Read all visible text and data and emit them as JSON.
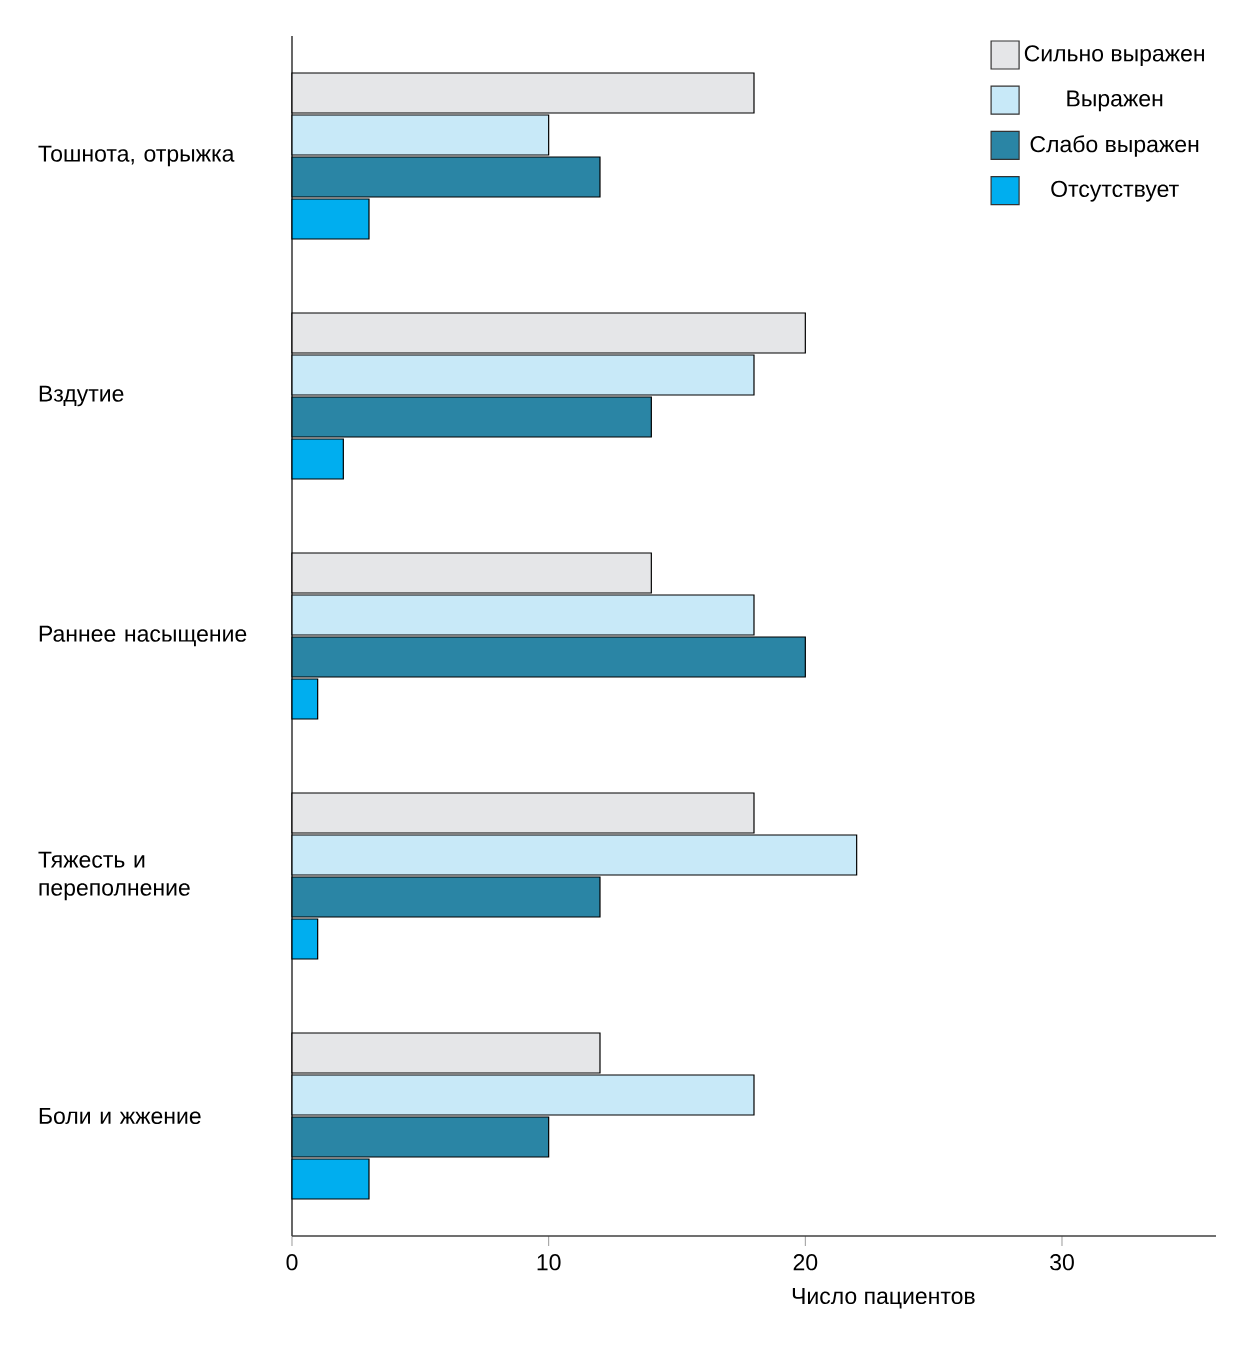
{
  "chart_data": {
    "type": "bar",
    "orientation": "horizontal",
    "xlabel": "Число пациентов",
    "categories": [
      "Тошнота, отрыжка",
      "Вздутие",
      "Раннее насыщение",
      "Тяжесть и переполнение",
      "Боли и жжение"
    ],
    "series": [
      {
        "name": "Сильно выражен",
        "color": "#e5e6e8",
        "values": [
          18,
          20,
          14,
          18,
          12
        ]
      },
      {
        "name": "Выражен",
        "color": "#c8e9f8",
        "values": [
          10,
          18,
          18,
          22,
          18
        ]
      },
      {
        "name": "Слабо выражен",
        "color": "#2a85a5",
        "values": [
          12,
          14,
          20,
          12,
          10
        ]
      },
      {
        "name": "Отсутствует",
        "color": "#00aeef",
        "values": [
          3,
          2,
          1,
          1,
          3
        ]
      }
    ],
    "xlim": [
      0,
      36
    ],
    "xticks": [
      0,
      10,
      20,
      30
    ],
    "grid": false,
    "legend": "top right"
  }
}
